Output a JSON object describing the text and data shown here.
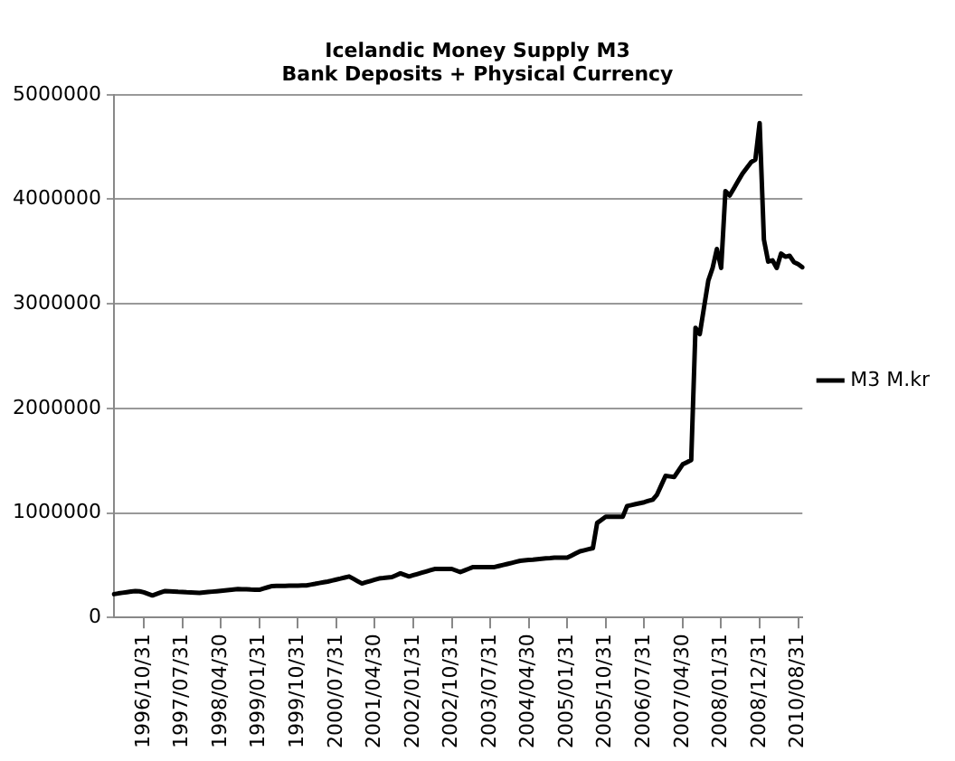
{
  "chart_data": {
    "type": "line",
    "title": "Icelandic Money Supply M3",
    "subtitle": "Bank Deposits + Physical Currency",
    "categories": [
      null,
      null,
      null,
      null,
      null,
      null,
      null,
      "1996/10/31",
      null,
      null,
      null,
      null,
      null,
      null,
      null,
      null,
      "1997/07/31",
      null,
      null,
      null,
      null,
      null,
      null,
      null,
      null,
      "1998/04/30",
      null,
      null,
      null,
      null,
      null,
      null,
      null,
      null,
      "1999/01/31",
      null,
      null,
      null,
      null,
      null,
      null,
      null,
      null,
      "1999/10/31",
      null,
      null,
      null,
      null,
      null,
      null,
      null,
      null,
      "2000/07/31",
      null,
      null,
      null,
      null,
      null,
      null,
      null,
      null,
      "2001/04/30",
      null,
      null,
      null,
      null,
      null,
      null,
      null,
      null,
      "2002/01/31",
      null,
      null,
      null,
      null,
      null,
      null,
      null,
      null,
      "2002/10/31",
      null,
      null,
      null,
      null,
      null,
      null,
      null,
      null,
      "2003/07/31",
      null,
      null,
      null,
      null,
      null,
      null,
      null,
      null,
      "2004/04/30",
      null,
      null,
      null,
      null,
      null,
      null,
      null,
      null,
      "2005/01/31",
      null,
      null,
      null,
      null,
      null,
      null,
      null,
      null,
      "2005/10/31",
      null,
      null,
      null,
      null,
      null,
      null,
      null,
      null,
      "2006/07/31",
      null,
      null,
      null,
      null,
      null,
      null,
      null,
      null,
      "2007/04/30",
      null,
      null,
      null,
      null,
      null,
      null,
      null,
      null,
      "2008/01/31",
      null,
      null,
      null,
      null,
      null,
      null,
      null,
      null,
      "2008/12/31",
      null,
      null,
      null,
      null,
      null,
      null,
      null,
      null,
      "2010/08/31",
      null
    ],
    "series": [
      {
        "name": "M3 M.kr",
        "color": "#000000",
        "values": [
          223000,
          230000,
          236000,
          242000,
          248000,
          253000,
          250000,
          240000,
          225000,
          211000,
          225000,
          240000,
          253000,
          251000,
          249000,
          246000,
          244000,
          241000,
          239000,
          237000,
          235000,
          239000,
          243000,
          247000,
          251000,
          255000,
          259000,
          263000,
          267000,
          271000,
          270000,
          269000,
          267000,
          266000,
          265000,
          277000,
          289000,
          301000,
          302000,
          302000,
          303000,
          304000,
          304000,
          305000,
          306000,
          307000,
          314000,
          321000,
          329000,
          336000,
          343000,
          353000,
          363000,
          372000,
          382000,
          392000,
          370000,
          347000,
          325000,
          337000,
          349000,
          361000,
          373000,
          377000,
          382000,
          386000,
          404000,
          422000,
          407000,
          392000,
          404000,
          416000,
          428000,
          440000,
          452000,
          464000,
          464000,
          464000,
          464000,
          464000,
          449000,
          434000,
          450000,
          466000,
          482000,
          482000,
          482000,
          482000,
          482000,
          482000,
          492000,
          502000,
          512000,
          522000,
          532000,
          542000,
          546000,
          550000,
          553000,
          557000,
          561000,
          565000,
          568000,
          572000,
          572000,
          572000,
          572000,
          592000,
          613000,
          633000,
          643000,
          653000,
          663000,
          904000,
          934000,
          964000,
          964000,
          964000,
          964000,
          964000,
          1066000,
          1075000,
          1084000,
          1093000,
          1102000,
          1115000,
          1127000,
          1175000,
          1265000,
          1355000,
          1349000,
          1343000,
          1404000,
          1464000,
          1485000,
          1506000,
          2771000,
          2711000,
          2967000,
          3223000,
          3343000,
          3524000,
          3343000,
          4078000,
          4036000,
          4106000,
          4177000,
          4247000,
          4301000,
          4355000,
          4380000,
          4729000,
          3614000,
          3404000,
          3416000,
          3343000,
          3480000,
          3450000,
          3460000,
          3400000,
          3380000,
          3350000
        ]
      }
    ],
    "ylim": [
      0,
      5000000
    ],
    "yticks": [
      0,
      1000000,
      2000000,
      3000000,
      4000000,
      5000000
    ],
    "grid": "y",
    "legend": "right",
    "marker": "none",
    "line_style": "solid"
  }
}
